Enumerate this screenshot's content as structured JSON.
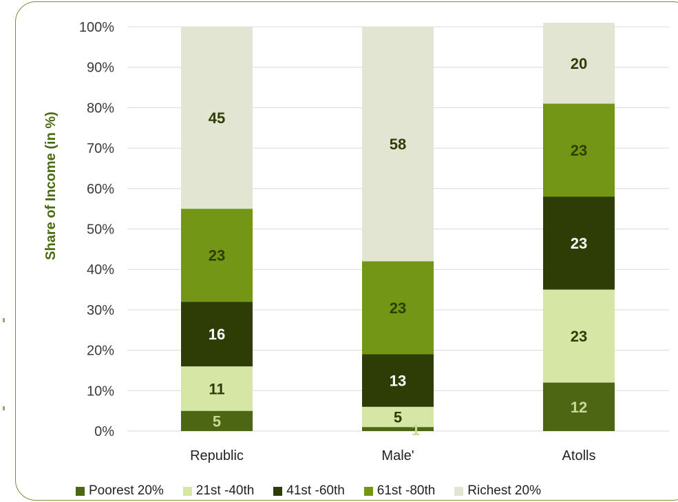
{
  "chart_data": {
    "type": "bar",
    "stacked": true,
    "categories": [
      "Republic",
      "Male'",
      "Atolls"
    ],
    "ylabel": "Share of Income (in %)",
    "ylim": [
      0,
      100
    ],
    "yticks": [
      "0%",
      "10%",
      "20%",
      "30%",
      "40%",
      "50%",
      "60%",
      "70%",
      "80%",
      "90%",
      "100%"
    ],
    "grid": true,
    "legend_position": "bottom",
    "series": [
      {
        "name": "Poorest 20%",
        "color": "#4d6614",
        "label_color": "#c9d998",
        "values": [
          5,
          1,
          12
        ]
      },
      {
        "name": "21st  -40th",
        "color": "#d6e6a4",
        "label_color": "#2e3d06",
        "values": [
          11,
          5,
          23
        ]
      },
      {
        "name": "41st -60th",
        "color": "#2e3d06",
        "label_color": "#ffffff",
        "values": [
          16,
          13,
          23
        ]
      },
      {
        "name": "61st -80th",
        "color": "#739614",
        "label_color": "#2e3d06",
        "values": [
          23,
          23,
          23
        ]
      },
      {
        "name": "Richest 20%",
        "color": "#e1e5d1",
        "label_color": "#2e3d06",
        "values": [
          45,
          58,
          20
        ]
      }
    ]
  }
}
